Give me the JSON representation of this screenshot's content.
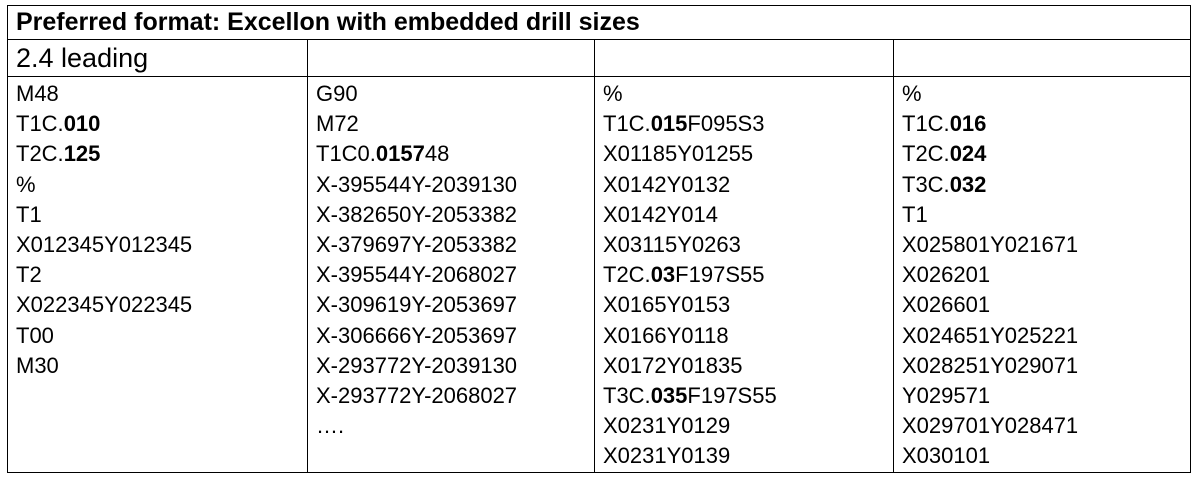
{
  "title": "Preferred format: Excellon with embedded drill sizes",
  "subtitle": "2.4 leading",
  "columns": [
    {
      "lines": [
        [
          {
            "t": "M48"
          }
        ],
        [
          {
            "t": "T1C."
          },
          {
            "t": "010",
            "b": true
          }
        ],
        [
          {
            "t": "T2C."
          },
          {
            "t": "125",
            "b": true
          }
        ],
        [
          {
            "t": "%"
          }
        ],
        [
          {
            "t": "T1"
          }
        ],
        [
          {
            "t": "X012345Y012345"
          }
        ],
        [
          {
            "t": "T2"
          }
        ],
        [
          {
            "t": "X022345Y022345"
          }
        ],
        [
          {
            "t": "T00"
          }
        ],
        [
          {
            "t": "M30"
          }
        ]
      ]
    },
    {
      "lines": [
        [
          {
            "t": "G90"
          }
        ],
        [
          {
            "t": "M72"
          }
        ],
        [
          {
            "t": "T1C0."
          },
          {
            "t": "0157",
            "b": true
          },
          {
            "t": "48"
          }
        ],
        [
          {
            "t": "X-395544Y-2039130"
          }
        ],
        [
          {
            "t": "X-382650Y-2053382"
          }
        ],
        [
          {
            "t": "X-379697Y-2053382"
          }
        ],
        [
          {
            "t": "X-395544Y-2068027"
          }
        ],
        [
          {
            "t": "X-309619Y-2053697"
          }
        ],
        [
          {
            "t": "X-306666Y-2053697"
          }
        ],
        [
          {
            "t": "X-293772Y-2039130"
          }
        ],
        [
          {
            "t": "X-293772Y-2068027"
          }
        ],
        [
          {
            "t": "…."
          }
        ]
      ]
    },
    {
      "lines": [
        [
          {
            "t": "%"
          }
        ],
        [
          {
            "t": "T1C."
          },
          {
            "t": "015",
            "b": true
          },
          {
            "t": "F095S3"
          }
        ],
        [
          {
            "t": "X01185Y01255"
          }
        ],
        [
          {
            "t": "X0142Y0132"
          }
        ],
        [
          {
            "t": "X0142Y014"
          }
        ],
        [
          {
            "t": "X03115Y0263"
          }
        ],
        [
          {
            "t": "T2C."
          },
          {
            "t": "03",
            "b": true
          },
          {
            "t": "F197S55"
          }
        ],
        [
          {
            "t": "X0165Y0153"
          }
        ],
        [
          {
            "t": "X0166Y0118"
          }
        ],
        [
          {
            "t": "X0172Y01835"
          }
        ],
        [
          {
            "t": "T3C."
          },
          {
            "t": "035",
            "b": true
          },
          {
            "t": "F197S55"
          }
        ],
        [
          {
            "t": "X0231Y0129"
          }
        ],
        [
          {
            "t": "X0231Y0139"
          }
        ]
      ]
    },
    {
      "lines": [
        [
          {
            "t": "%"
          }
        ],
        [
          {
            "t": "T1C."
          },
          {
            "t": "016",
            "b": true
          }
        ],
        [
          {
            "t": "T2C."
          },
          {
            "t": "024",
            "b": true
          }
        ],
        [
          {
            "t": "T3C."
          },
          {
            "t": "032",
            "b": true
          }
        ],
        [
          {
            "t": "T1"
          }
        ],
        [
          {
            "t": "X025801Y021671"
          }
        ],
        [
          {
            "t": "X026201"
          }
        ],
        [
          {
            "t": "X026601"
          }
        ],
        [
          {
            "t": "X024651Y025221"
          }
        ],
        [
          {
            "t": "X028251Y029071"
          }
        ],
        [
          {
            "t": "Y029571"
          }
        ],
        [
          {
            "t": "X029701Y028471"
          }
        ],
        [
          {
            "t": "X030101"
          }
        ]
      ]
    }
  ]
}
